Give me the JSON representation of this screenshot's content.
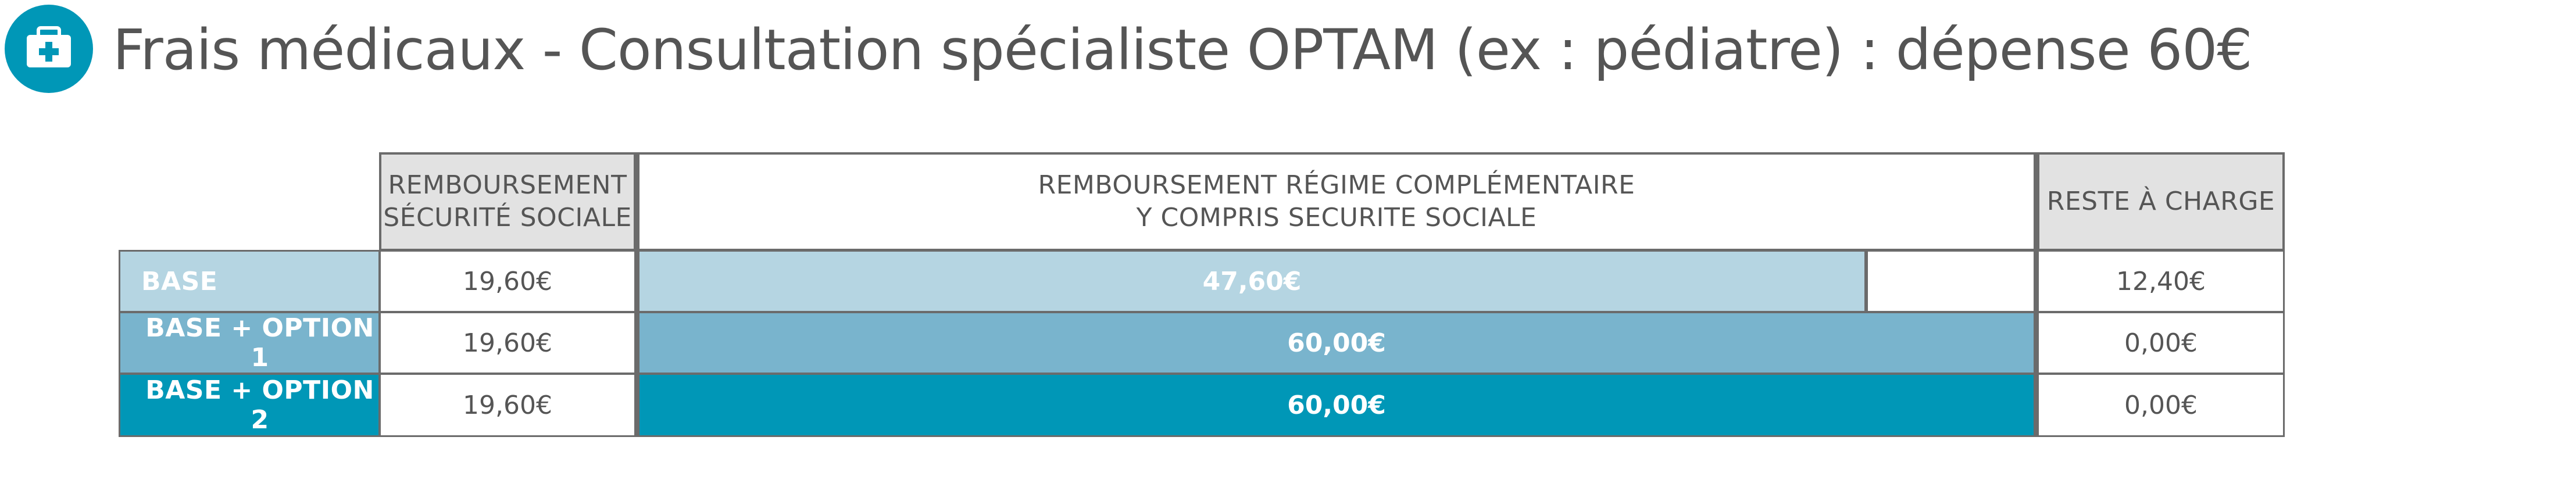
{
  "title": "Frais médicaux - Consultation spécialiste OPTAM (ex : pédiatre) : dépense 60€",
  "icon": "medical-kit-icon",
  "colors": {
    "icon_bg": "#0097b7",
    "base": "#b5d5e2",
    "option1": "#79b4cd",
    "option2": "#0097b7",
    "header_bg": "#e2e2e2"
  },
  "table": {
    "headers": {
      "secu_line1": "REMBOURSEMENT",
      "secu_line2": "SÉCURITÉ SOCIALE",
      "compl_line1": "REMBOURSEMENT RÉGIME COMPLÉMENTAIRE",
      "compl_line2": "Y COMPRIS SECURITE SOCIALE",
      "reste": "RESTE À CHARGE"
    },
    "rows": [
      {
        "label": "BASE",
        "secu": "19,60€",
        "compl": "47,60€",
        "compl_fraction": 0.7933,
        "reste": "12,40€"
      },
      {
        "label": "BASE + OPTION 1",
        "secu": "19,60€",
        "compl": "60,00€",
        "compl_fraction": 1.0,
        "reste": "0,00€"
      },
      {
        "label": "BASE + OPTION 2",
        "secu": "19,60€",
        "compl": "60,00€",
        "compl_fraction": 1.0,
        "reste": "0,00€"
      }
    ]
  }
}
